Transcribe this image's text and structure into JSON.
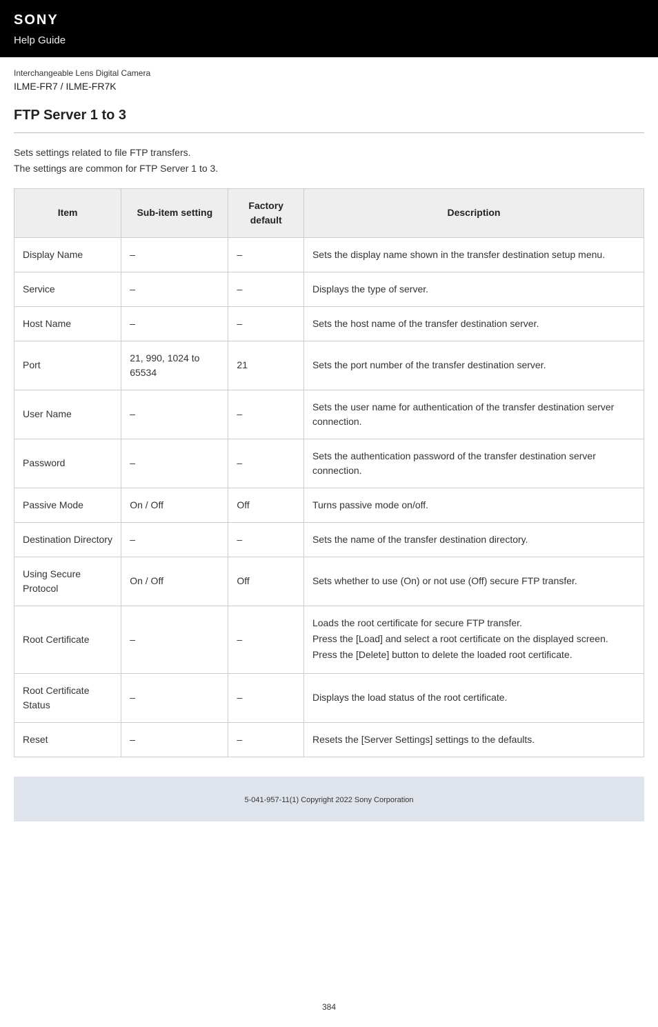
{
  "banner": {
    "brand": "SONY",
    "guide": "Help Guide"
  },
  "product": {
    "type": "Interchangeable Lens Digital Camera",
    "model": "ILME-FR7 / ILME-FR7K"
  },
  "page_title": "FTP Server 1 to 3",
  "intro": {
    "line1": "Sets settings related to file FTP transfers.",
    "line2": "The settings are common for FTP Server 1 to 3."
  },
  "table": {
    "headers": {
      "item": "Item",
      "sub": "Sub-item setting",
      "def": "Factory default",
      "desc": "Description"
    },
    "rows": {
      "display_name": {
        "item": "Display Name",
        "sub": "–",
        "def": "–",
        "desc": "Sets the display name shown in the transfer destination setup menu."
      },
      "service": {
        "item": "Service",
        "sub": "–",
        "def": "–",
        "desc": "Displays the type of server."
      },
      "host_name": {
        "item": "Host Name",
        "sub": "–",
        "def": "–",
        "desc": "Sets the host name of the transfer destination server."
      },
      "port": {
        "item": "Port",
        "sub": "21, 990, 1024 to 65534",
        "def": "21",
        "desc": "Sets the port number of the transfer destination server."
      },
      "user_name": {
        "item": "User Name",
        "sub": "–",
        "def": "–",
        "desc": "Sets the user name for authentication of the transfer destination server connection."
      },
      "password": {
        "item": "Password",
        "sub": "–",
        "def": "–",
        "desc": "Sets the authentication password of the transfer destination server connection."
      },
      "passive_mode": {
        "item": "Passive Mode",
        "sub": "On / Off",
        "def": "Off",
        "desc": "Turns passive mode on/off."
      },
      "dest_dir": {
        "item": "Destination Directory",
        "sub": "–",
        "def": "–",
        "desc": "Sets the name of the transfer destination directory."
      },
      "secure_protocol": {
        "item": "Using Secure Protocol",
        "sub": "On / Off",
        "def": "Off",
        "desc": "Sets whether to use (On) or not use (Off) secure FTP transfer."
      },
      "root_cert": {
        "item": "Root Certificate",
        "sub": "–",
        "def": "–",
        "desc1": "Loads the root certificate for secure FTP transfer.",
        "desc2": "Press the [Load] and select a root certificate on the displayed screen.",
        "desc3": "Press the [Delete] button to delete the loaded root certificate."
      },
      "root_cert_status": {
        "item": "Root Certificate Status",
        "sub": "–",
        "def": "–",
        "desc": "Displays the load status of the root certificate."
      },
      "reset": {
        "item": "Reset",
        "sub": "–",
        "def": "–",
        "desc": "Resets the [Server Settings] settings to the defaults."
      }
    }
  },
  "footer": {
    "copyright": "5-041-957-11(1) Copyright 2022 Sony Corporation"
  },
  "page_number": "384"
}
